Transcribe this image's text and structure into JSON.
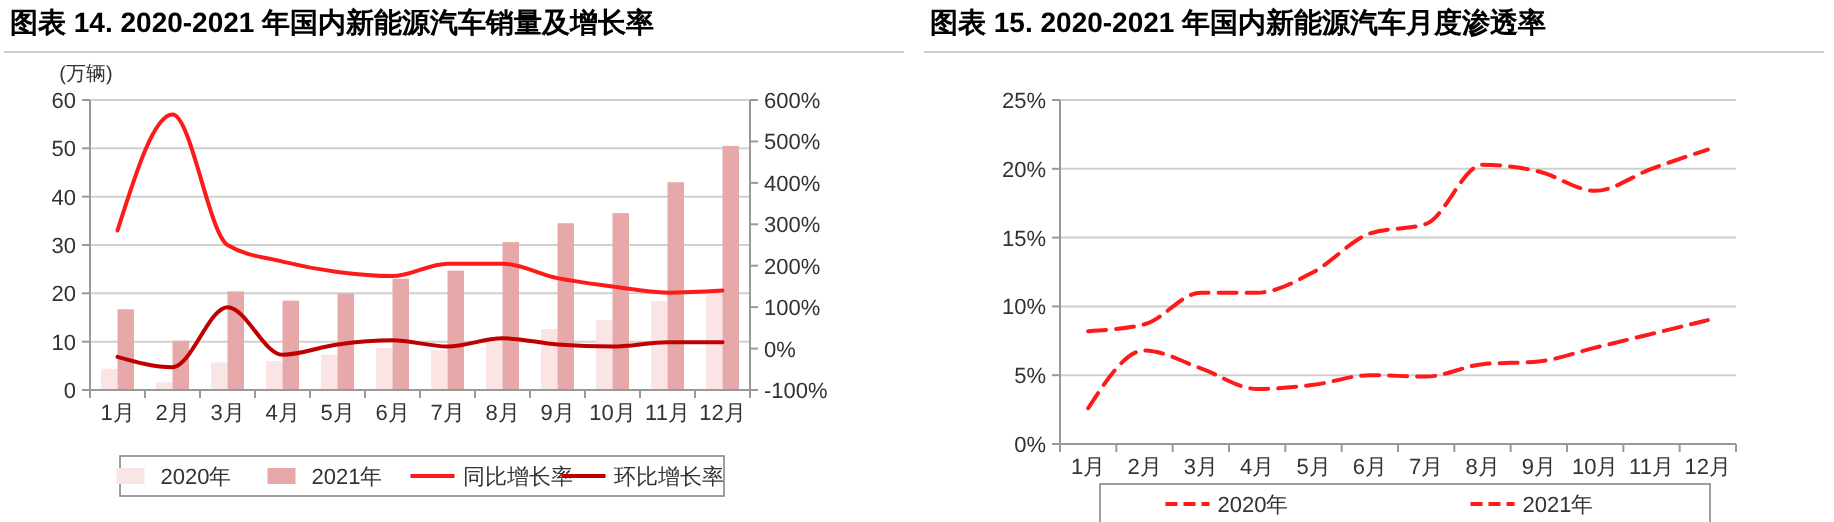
{
  "chart_data": [
    {
      "type": "bar",
      "title": "图表 14. 2020-2021 年国内新能源汽车销量及增长率",
      "ylabel": "(万辆)",
      "categories": [
        "1月",
        "2月",
        "3月",
        "4月",
        "5月",
        "6月",
        "7月",
        "8月",
        "9月",
        "10月",
        "11月",
        "12月"
      ],
      "series": [
        {
          "name": "2020年",
          "color": "#fbe4e4",
          "values": [
            4.4,
            1.6,
            5.7,
            6.0,
            7.3,
            8.7,
            8.2,
            10.9,
            12.6,
            14.5,
            18.4,
            20.0
          ]
        },
        {
          "name": "2021年",
          "color": "#e6a8a8",
          "values": [
            16.7,
            10.2,
            20.4,
            18.5,
            20.0,
            23.0,
            24.7,
            30.6,
            34.5,
            36.6,
            43.0,
            50.5
          ]
        },
        {
          "name": "同比增长率",
          "type": "line",
          "axis": "y2",
          "color": "#ff1a1a",
          "values": [
            285,
            565,
            250,
            210,
            185,
            175,
            205,
            205,
            170,
            150,
            135,
            140
          ]
        },
        {
          "name": "环比增长率",
          "type": "line",
          "axis": "y2",
          "color": "#c00000",
          "values": [
            -20,
            -45,
            100,
            -15,
            10,
            20,
            5,
            25,
            10,
            5,
            15,
            15
          ]
        }
      ],
      "ylim": [
        0,
        60
      ],
      "yticks": [
        0,
        10,
        20,
        30,
        40,
        50,
        60
      ],
      "y2lim": [
        -100,
        600
      ],
      "y2ticks": [
        {
          "value": -100,
          "label": "-100%"
        },
        {
          "value": 0,
          "label": "0%"
        },
        {
          "value": 100,
          "label": "100%"
        },
        {
          "value": 200,
          "label": "200%"
        },
        {
          "value": 300,
          "label": "300%"
        },
        {
          "value": 400,
          "label": "400%"
        },
        {
          "value": 500,
          "label": "500%"
        },
        {
          "value": 600,
          "label": "600%"
        }
      ],
      "grid": "y",
      "legend": "bottom",
      "marker": "none"
    },
    {
      "type": "line",
      "title": "图表 15. 2020-2021 年国内新能源汽车月度渗透率",
      "categories": [
        "1月",
        "2月",
        "3月",
        "4月",
        "5月",
        "6月",
        "7月",
        "8月",
        "9月",
        "10月",
        "11月",
        "12月"
      ],
      "series": [
        {
          "name": "2020年",
          "color": "#ff1a1a",
          "values": [
            2.6,
            6.8,
            5.5,
            4.0,
            4.3,
            5.0,
            4.9,
            5.8,
            6.0,
            7.0,
            8.0,
            9.0
          ]
        },
        {
          "name": "2021年",
          "color": "#ff1a1a",
          "values": [
            8.2,
            8.7,
            11.0,
            11.0,
            12.5,
            15.3,
            16.0,
            20.3,
            19.8,
            18.4,
            20.0,
            21.4
          ]
        }
      ],
      "ylim": [
        0,
        25
      ],
      "yticks": [
        {
          "value": 0,
          "label": "0%"
        },
        {
          "value": 5,
          "label": "5%"
        },
        {
          "value": 10,
          "label": "10%"
        },
        {
          "value": 15,
          "label": "15%"
        },
        {
          "value": 20,
          "label": "20%"
        },
        {
          "value": 25,
          "label": "25%"
        }
      ],
      "grid": "y",
      "legend": "bottom",
      "marker": "none",
      "line_style": "dashed"
    }
  ]
}
